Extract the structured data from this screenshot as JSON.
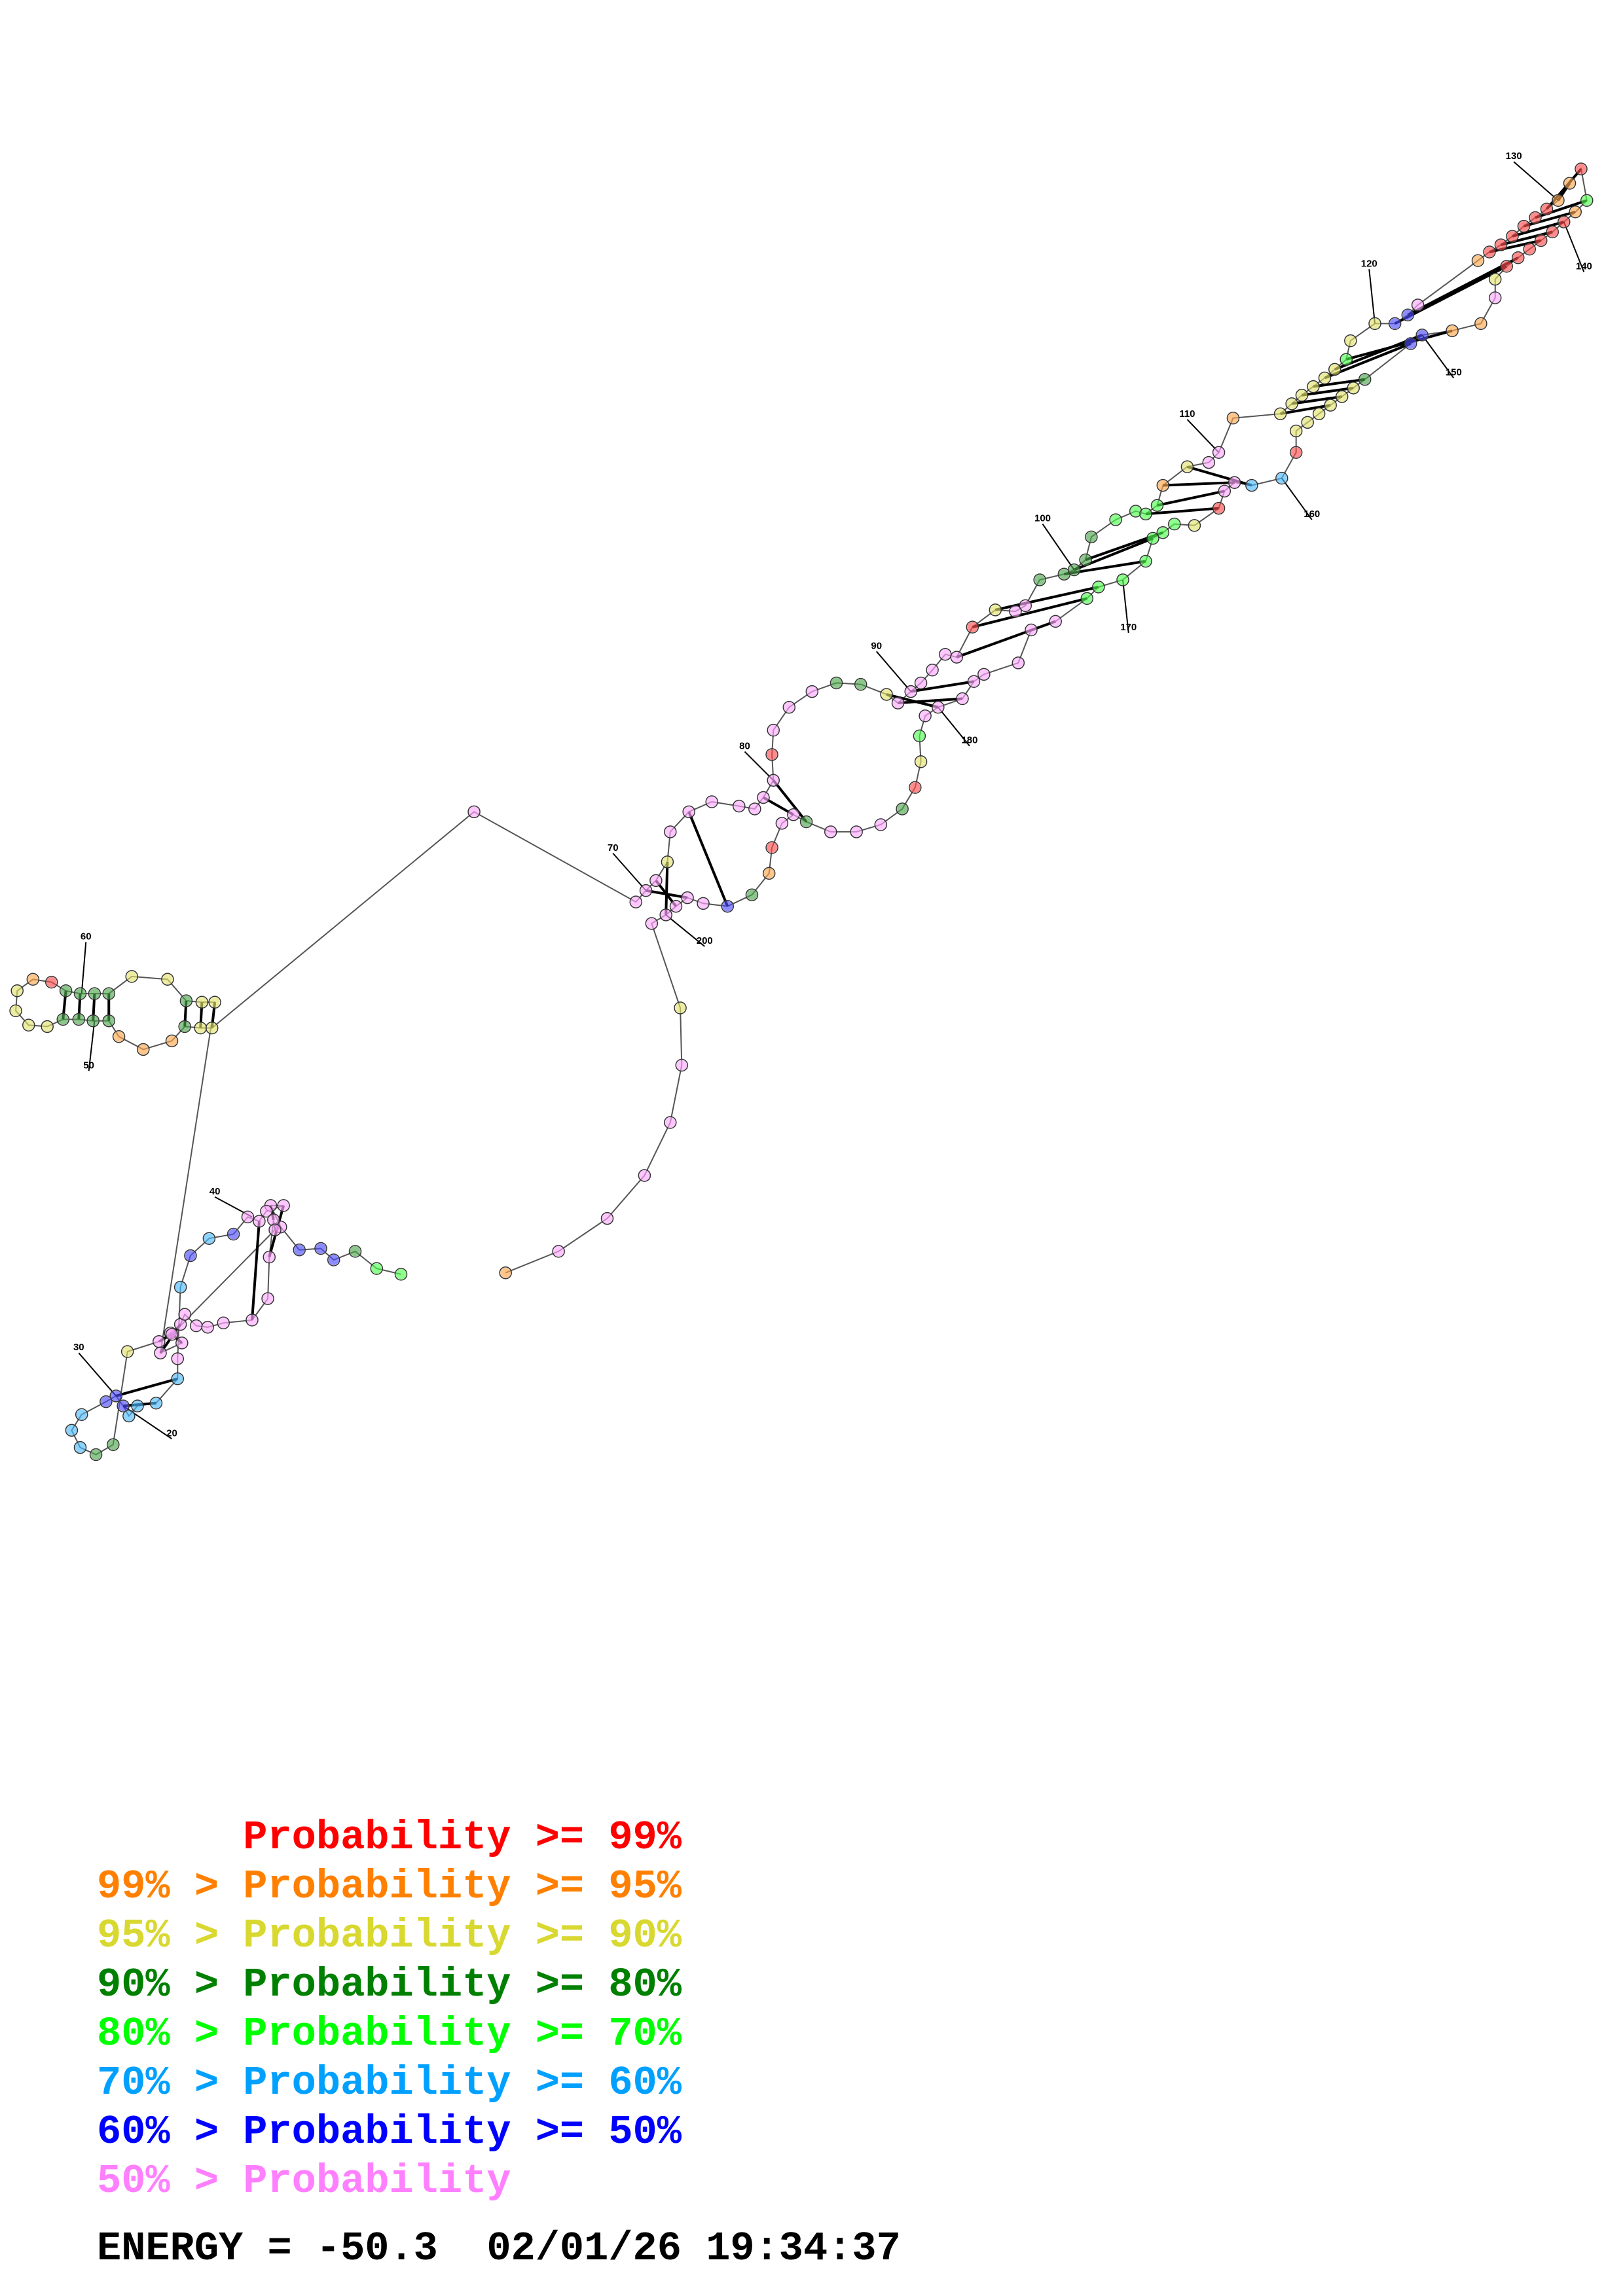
{
  "legend": [
    {
      "prefix": "    ",
      "label": "Probability >= 99%",
      "color": "#ff0000"
    },
    {
      "prefix": "99% > ",
      "label": "Probability >= 95%",
      "color": "#ff8000"
    },
    {
      "prefix": "95% > ",
      "label": "Probability >= 90%",
      "color": "#d8d830"
    },
    {
      "prefix": "90% > ",
      "label": "Probability >= 80%",
      "color": "#008000"
    },
    {
      "prefix": "80% > ",
      "label": "Probability >= 70%",
      "color": "#00ff00"
    },
    {
      "prefix": "70% > ",
      "label": "Probability >= 60%",
      "color": "#00a0ff"
    },
    {
      "prefix": "60% > ",
      "label": "Probability >= 50%",
      "color": "#0000ff"
    },
    {
      "prefix": "50% > ",
      "label": "Probability",
      "color": "#ff80ff"
    }
  ],
  "energy": {
    "label": "ENERGY = ",
    "value": "-50.3",
    "date": "02/01/26",
    "time": "19:34:37"
  },
  "index_labels": [
    "20",
    "30",
    "40",
    "50",
    "60",
    "70",
    "80",
    "90",
    "100",
    "110",
    "120",
    "130",
    "140",
    "150",
    "160",
    "170",
    "180",
    "200"
  ],
  "colors": {
    "p99": "#ff0000",
    "p95": "#ff8000",
    "p90": "#d8d830",
    "p80": "#008000",
    "p70": "#00ff00",
    "p60": "#00a0ff",
    "p50": "#0000ff",
    "plow": "#ff80ff"
  }
}
